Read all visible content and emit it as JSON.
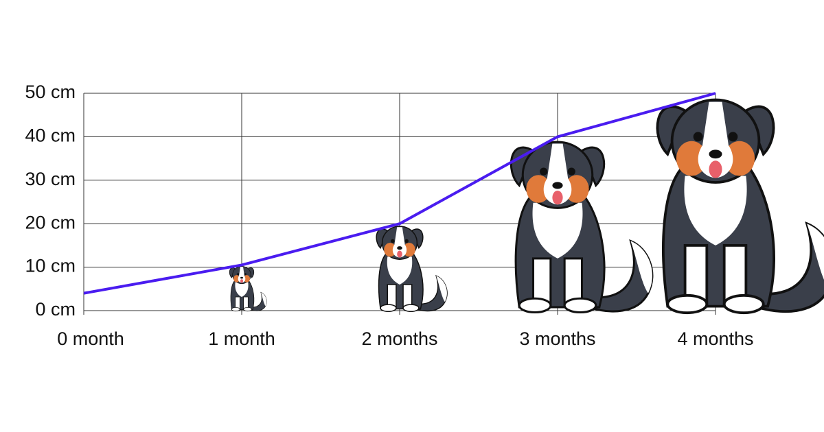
{
  "chart_data": {
    "type": "line",
    "categories": [
      "0 month",
      "1 month",
      "2 months",
      "3 months",
      "4 months"
    ],
    "series": [
      {
        "color": "#4a1cf0",
        "values": [
          4,
          10.5,
          20,
          40,
          50
        ]
      }
    ],
    "ylim": [
      0,
      50
    ],
    "yticks": [
      {
        "value": 0,
        "label": "0 cm"
      },
      {
        "value": 10,
        "label": "10 cm"
      },
      {
        "value": 20,
        "label": "20 cm"
      },
      {
        "value": 30,
        "label": "30 cm"
      },
      {
        "value": 40,
        "label": "40 cm"
      },
      {
        "value": 50,
        "label": "50 cm"
      }
    ],
    "grid": true
  }
}
